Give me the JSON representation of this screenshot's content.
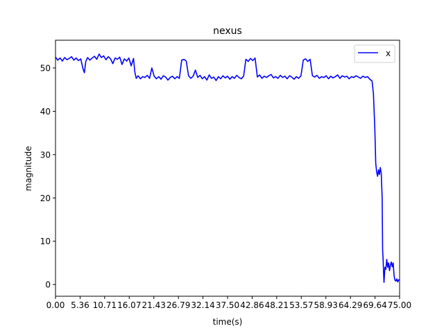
{
  "chart_data": {
    "type": "line",
    "title": "nexus",
    "xlabel": "time(s)",
    "ylabel": "magnitude",
    "xlim": [
      0,
      75
    ],
    "ylim": [
      -2.7,
      56.4
    ],
    "x_ticks": [
      "0.00",
      "5.36",
      "10.71",
      "16.07",
      "21.43",
      "26.79",
      "32.14",
      "37.50",
      "42.86",
      "48.21",
      "53.57",
      "58.93",
      "64.29",
      "69.64",
      "75.00"
    ],
    "y_ticks": [
      "0",
      "10",
      "20",
      "30",
      "40",
      "50"
    ],
    "grid": false,
    "legend_position": "top-right",
    "series": [
      {
        "name": "x",
        "color": "#0000ff",
        "x": [
          0.0,
          0.5,
          1.0,
          1.5,
          2.0,
          2.5,
          3.0,
          3.5,
          4.0,
          4.5,
          5.0,
          5.5,
          6.0,
          6.3,
          6.6,
          7.0,
          7.5,
          8.0,
          8.5,
          9.0,
          9.5,
          10.0,
          10.5,
          11.0,
          11.5,
          12.0,
          12.5,
          13.0,
          13.5,
          14.0,
          14.5,
          15.0,
          15.5,
          16.0,
          16.5,
          17.0,
          17.3,
          17.6,
          18.0,
          18.5,
          19.0,
          19.5,
          20.0,
          20.5,
          21.0,
          21.5,
          22.0,
          22.5,
          23.0,
          23.5,
          24.0,
          24.5,
          25.0,
          25.5,
          26.0,
          26.5,
          27.0,
          27.5,
          28.0,
          28.5,
          29.0,
          29.5,
          30.0,
          30.5,
          31.0,
          31.5,
          32.0,
          32.5,
          33.0,
          33.5,
          34.0,
          34.5,
          35.0,
          35.5,
          36.0,
          36.5,
          37.0,
          37.5,
          38.0,
          38.5,
          39.0,
          39.5,
          40.0,
          40.5,
          41.0,
          41.5,
          42.0,
          42.5,
          43.0,
          43.5,
          44.0,
          44.5,
          45.0,
          45.5,
          46.0,
          46.5,
          47.0,
          47.5,
          48.0,
          48.5,
          49.0,
          49.5,
          50.0,
          50.5,
          51.0,
          51.5,
          52.0,
          52.5,
          53.0,
          53.5,
          54.0,
          54.5,
          55.0,
          55.5,
          56.0,
          56.5,
          57.0,
          57.5,
          58.0,
          58.5,
          59.0,
          59.5,
          60.0,
          60.5,
          61.0,
          61.5,
          62.0,
          62.5,
          63.0,
          63.5,
          64.0,
          64.5,
          65.0,
          65.5,
          66.0,
          66.5,
          67.0,
          67.5,
          68.0,
          68.5,
          69.0,
          69.3,
          69.6,
          69.8,
          70.0,
          70.2,
          70.4,
          70.6,
          70.8,
          71.0,
          71.2,
          71.3,
          71.4,
          71.5,
          71.6,
          71.8,
          72.0,
          72.2,
          72.4,
          72.6,
          72.8,
          73.0,
          73.2,
          73.4,
          73.6,
          73.8,
          74.0,
          74.2,
          74.4,
          74.6,
          74.8,
          75.0
        ],
        "y": [
          52.5,
          51.8,
          52.3,
          51.6,
          52.4,
          51.9,
          52.2,
          52.6,
          51.8,
          52.3,
          51.7,
          52.1,
          49.8,
          48.9,
          51.5,
          52.4,
          51.8,
          52.3,
          52.7,
          52.0,
          53.2,
          52.4,
          52.8,
          51.9,
          52.6,
          52.1,
          51.0,
          52.3,
          52.0,
          52.5,
          50.8,
          52.1,
          51.6,
          52.3,
          50.5,
          52.2,
          49.0,
          47.6,
          48.2,
          47.5,
          48.0,
          47.8,
          48.3,
          47.6,
          50.0,
          48.1,
          47.5,
          48.0,
          47.4,
          48.2,
          47.9,
          47.2,
          47.8,
          48.1,
          47.5,
          48.0,
          47.6,
          51.8,
          52.0,
          51.6,
          48.2,
          47.6,
          48.1,
          49.5,
          47.8,
          48.3,
          47.5,
          48.0,
          47.2,
          48.4,
          47.6,
          47.9,
          47.1,
          48.0,
          47.5,
          48.2,
          47.7,
          48.1,
          47.4,
          48.0,
          47.6,
          48.3,
          47.8,
          47.5,
          48.1,
          52.0,
          51.5,
          52.2,
          51.7,
          52.3,
          47.9,
          48.4,
          47.6,
          48.1,
          47.8,
          48.2,
          48.5,
          47.7,
          48.0,
          47.6,
          48.3,
          47.8,
          48.1,
          47.5,
          48.2,
          47.9,
          47.4,
          48.0,
          47.6,
          48.2,
          51.8,
          52.1,
          51.5,
          52.0,
          48.2,
          47.9,
          48.3,
          47.6,
          48.0,
          47.8,
          48.2,
          47.5,
          48.1,
          47.7,
          48.0,
          48.4,
          47.6,
          48.2,
          47.9,
          48.1,
          47.5,
          48.0,
          47.8,
          48.2,
          47.9,
          47.6,
          48.1,
          47.8,
          48.0,
          47.4,
          47.0,
          44.0,
          36.0,
          28.0,
          26.0,
          25.0,
          26.5,
          25.4,
          27.0,
          25.6,
          20.0,
          8.0,
          6.0,
          3.0,
          0.5,
          4.0,
          3.5,
          5.8,
          4.0,
          5.0,
          3.2,
          4.5,
          5.2,
          4.1,
          5.0,
          2.0,
          1.0,
          0.8,
          1.3,
          0.6,
          1.1,
          1.0
        ]
      }
    ]
  }
}
